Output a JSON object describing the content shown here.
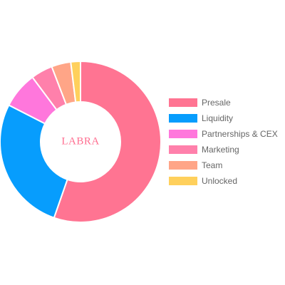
{
  "chart_data": {
    "type": "pie",
    "subtype": "doughnut",
    "center_label": "LABRA",
    "center_label_color": "#ff6f91",
    "categories": [
      "Presale",
      "Liquidity",
      "Partnerships & CEX",
      "Marketing",
      "Team",
      "Unlocked"
    ],
    "values": [
      57,
      28,
      7.5,
      4.5,
      4,
      2
    ],
    "colors": [
      "#ff7492",
      "#079dfd",
      "#ff77dc",
      "#ff80ab",
      "#ffa587",
      "#ffd05c"
    ],
    "legend_position": "right"
  }
}
